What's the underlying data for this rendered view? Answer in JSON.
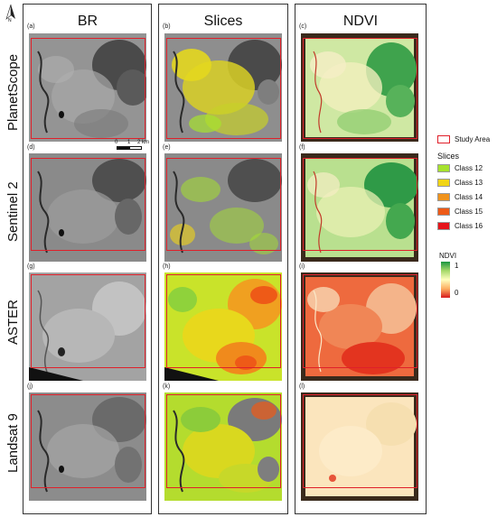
{
  "columns": [
    {
      "title": "BR"
    },
    {
      "title": "Slices"
    },
    {
      "title": "NDVI"
    }
  ],
  "rows": [
    {
      "label": "PlanetScope"
    },
    {
      "label": "Sentinel 2"
    },
    {
      "label": "ASTER"
    },
    {
      "label": "Landsat 9"
    }
  ],
  "panels": {
    "a": "(a)",
    "b": "(b)",
    "c": "(c)",
    "d": "(d)",
    "e": "(e)",
    "f": "(f)",
    "g": "(g)",
    "h": "(h)",
    "i": "(i)",
    "j": "(j)",
    "k": "(k)",
    "l": "(l)"
  },
  "scale_bar": {
    "t0": "0",
    "t1": "1",
    "t2": "2 km"
  },
  "legend": {
    "study_area": "Study Area",
    "slices_title": "Slices",
    "classes": [
      {
        "label": "Class 12",
        "color": "#a6e22e"
      },
      {
        "label": "Class 13",
        "color": "#f1d515"
      },
      {
        "label": "Class 14",
        "color": "#f0931c"
      },
      {
        "label": "Class 15",
        "color": "#ee5a17"
      },
      {
        "label": "Class 16",
        "color": "#e6151b"
      }
    ],
    "ndvi_title": "NDVI",
    "ndvi_max": "1",
    "ndvi_min": "0",
    "ndvi_colors": [
      "#1a9641",
      "#a6d96a",
      "#ffffbf",
      "#fdae61",
      "#d7191c"
    ]
  },
  "north_arrow": {
    "label": "N"
  },
  "colors": {
    "study_area": "#e0202a",
    "frame": "#333333"
  }
}
